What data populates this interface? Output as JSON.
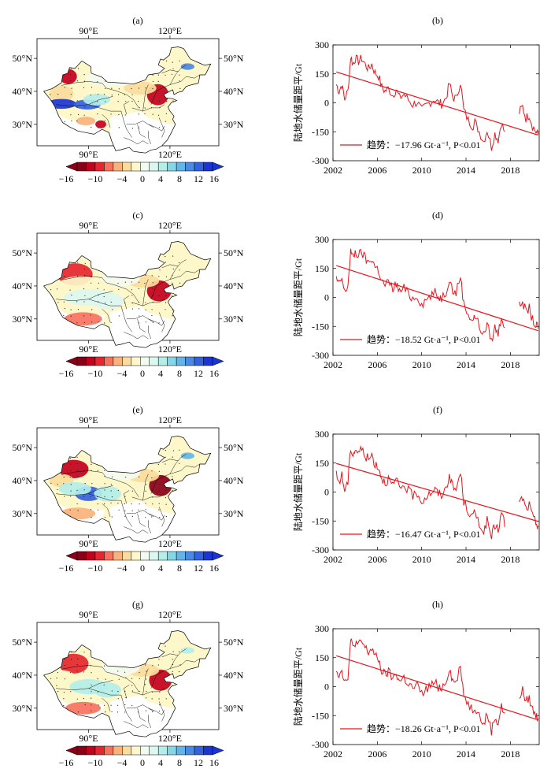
{
  "figure": {
    "colorbar": {
      "tick_labels": [
        "−16",
        "−10",
        "−4",
        "0",
        "4",
        "8",
        "12",
        "16"
      ],
      "colors": [
        "#8b0019",
        "#c3001d",
        "#e5262f",
        "#f7725e",
        "#f9b27c",
        "#fbdc9d",
        "#fdf7c9",
        "#f3fbf0",
        "#dcf6f0",
        "#b3eee9",
        "#84d7e6",
        "#62b5e8",
        "#4b8ae2",
        "#3461de",
        "#1a35d4"
      ]
    },
    "maps": [
      {
        "panel": "(a)",
        "lon_labels_top": [
          "90°E",
          "120°E"
        ],
        "lon_labels_bottom": [
          "90°E",
          "120°E"
        ],
        "lat_labels_left": [
          "50°N",
          "40°N",
          "30°N"
        ],
        "lat_labels_right": [
          "50°N",
          "40°N",
          "30°N"
        ]
      },
      {
        "panel": "(c)",
        "lon_labels_top": [
          "90°E",
          "120°E"
        ],
        "lon_labels_bottom": [
          "90°E",
          "120°E"
        ],
        "lat_labels_left": [
          "50°N",
          "40°N",
          "30°N"
        ],
        "lat_labels_right": [
          "50°N",
          "40°N",
          "30°N"
        ]
      },
      {
        "panel": "(e)",
        "lon_labels_top": [
          "90°E",
          "120°E"
        ],
        "lon_labels_bottom": [
          "90°E",
          "120°E"
        ],
        "lat_labels_left": [
          "50°N",
          "40°N",
          "30°N"
        ],
        "lat_labels_right": [
          "50°N",
          "40°N",
          "30°N"
        ]
      },
      {
        "panel": "(g)",
        "lon_labels_top": [
          "90°E",
          "120°E"
        ],
        "lon_labels_bottom": [
          "90°E",
          "120°E"
        ],
        "lat_labels_left": [
          "50°N",
          "40°N",
          "30°N"
        ],
        "lat_labels_right": [
          "50°N",
          "40°N",
          "30°N"
        ]
      }
    ]
  },
  "chart_data": [
    {
      "panel": "(b)",
      "type": "line",
      "ylabel": "陆地水储量距平/Gt",
      "xlim": [
        2002,
        2020.6
      ],
      "ylim": [
        -300,
        300
      ],
      "xticks": [
        2002,
        2006,
        2010,
        2014,
        2018
      ],
      "yticks": [
        -300,
        -150,
        0,
        150,
        300
      ],
      "legend": {
        "label": "趋势：−17.96 Gt·a⁻¹, P<0.01",
        "location": "lower-left"
      },
      "trend": {
        "slope": -17.96,
        "x": [
          2002.3,
          2020.5
        ],
        "y": [
          160,
          -167
        ]
      }
    },
    {
      "panel": "(d)",
      "type": "line",
      "ylabel": "陆地水储量距平/Gt",
      "xlim": [
        2002,
        2020.6
      ],
      "ylim": [
        -300,
        300
      ],
      "xticks": [
        2002,
        2006,
        2010,
        2014,
        2018
      ],
      "yticks": [
        -300,
        -150,
        0,
        150,
        300
      ],
      "legend": {
        "label": "趋势：−18.52 Gt·a⁻¹, P<0.01",
        "location": "lower-left"
      },
      "trend": {
        "slope": -18.52,
        "x": [
          2002.3,
          2020.5
        ],
        "y": [
          165,
          -172
        ]
      }
    },
    {
      "panel": "(f)",
      "type": "line",
      "ylabel": "陆地水储量距平/Gt",
      "xlim": [
        2002,
        2020.6
      ],
      "ylim": [
        -300,
        300
      ],
      "xticks": [
        2002,
        2006,
        2010,
        2014,
        2018
      ],
      "yticks": [
        -300,
        -150,
        0,
        150,
        300
      ],
      "legend": {
        "label": "趋势：−16.47 Gt·a⁻¹, P<0.01",
        "location": "lower-left"
      },
      "trend": {
        "slope": -16.47,
        "x": [
          2002.3,
          2020.5
        ],
        "y": [
          148,
          -152
        ]
      }
    },
    {
      "panel": "(h)",
      "type": "line",
      "ylabel": "陆地水储量距平/Gt",
      "xlim": [
        2002,
        2020.6
      ],
      "ylim": [
        -300,
        300
      ],
      "xticks": [
        2002,
        2006,
        2010,
        2014,
        2018
      ],
      "yticks": [
        -300,
        -150,
        0,
        150,
        300
      ],
      "legend": {
        "label": "趋势：−18.26 Gt·a⁻¹, P<0.01",
        "location": "lower-left"
      },
      "trend": {
        "slope": -18.26,
        "x": [
          2002.3,
          2020.5
        ],
        "y": [
          160,
          -172
        ]
      }
    }
  ]
}
